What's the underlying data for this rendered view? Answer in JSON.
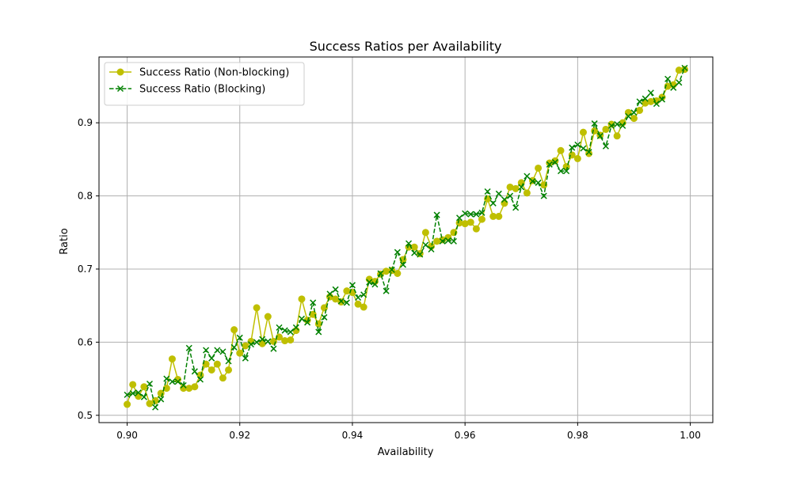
{
  "chart_data": {
    "type": "line",
    "title": "Success Ratios per Availability",
    "xlabel": "Availability",
    "ylabel": "Ratio",
    "xlim": [
      0.895,
      1.004
    ],
    "ylim": [
      0.49,
      0.99
    ],
    "x_ticks": [
      0.9,
      0.92,
      0.94,
      0.96,
      0.98,
      1.0
    ],
    "x_tick_labels": [
      "0.90",
      "0.92",
      "0.94",
      "0.96",
      "0.98",
      "1.00"
    ],
    "y_ticks": [
      0.5,
      0.6,
      0.7,
      0.8,
      0.9
    ],
    "y_tick_labels": [
      "0.5",
      "0.6",
      "0.7",
      "0.8",
      "0.9"
    ],
    "grid": true,
    "legend_position": "upper-left",
    "x": [
      0.9,
      0.901,
      0.902,
      0.903,
      0.904,
      0.905,
      0.906,
      0.907,
      0.908,
      0.909,
      0.91,
      0.911,
      0.912,
      0.913,
      0.914,
      0.915,
      0.916,
      0.917,
      0.918,
      0.919,
      0.92,
      0.921,
      0.922,
      0.923,
      0.924,
      0.925,
      0.926,
      0.927,
      0.928,
      0.929,
      0.93,
      0.931,
      0.932,
      0.933,
      0.934,
      0.935,
      0.936,
      0.937,
      0.938,
      0.939,
      0.94,
      0.941,
      0.942,
      0.943,
      0.944,
      0.945,
      0.946,
      0.947,
      0.948,
      0.949,
      0.95,
      0.951,
      0.952,
      0.953,
      0.954,
      0.955,
      0.956,
      0.957,
      0.958,
      0.959,
      0.96,
      0.961,
      0.962,
      0.963,
      0.964,
      0.965,
      0.966,
      0.967,
      0.968,
      0.969,
      0.97,
      0.971,
      0.972,
      0.973,
      0.974,
      0.975,
      0.976,
      0.977,
      0.978,
      0.979,
      0.98,
      0.981,
      0.982,
      0.983,
      0.984,
      0.985,
      0.986,
      0.987,
      0.988,
      0.989,
      0.99,
      0.991,
      0.992,
      0.993,
      0.994,
      0.995,
      0.996,
      0.997,
      0.998,
      0.999
    ],
    "series": [
      {
        "name": "Success Ratio (Non-blocking)",
        "color": "#bfbf00",
        "line_style": "solid",
        "marker": "circle",
        "values": [
          0.515,
          0.542,
          0.526,
          0.539,
          0.516,
          0.52,
          0.53,
          0.537,
          0.577,
          0.549,
          0.537,
          0.537,
          0.539,
          0.555,
          0.57,
          0.562,
          0.57,
          0.551,
          0.562,
          0.617,
          0.585,
          0.595,
          0.601,
          0.647,
          0.598,
          0.635,
          0.601,
          0.607,
          0.602,
          0.603,
          0.616,
          0.659,
          0.63,
          0.638,
          0.625,
          0.647,
          0.662,
          0.659,
          0.655,
          0.67,
          0.668,
          0.652,
          0.648,
          0.686,
          0.683,
          0.693,
          0.697,
          0.698,
          0.694,
          0.713,
          0.73,
          0.73,
          0.721,
          0.75,
          0.731,
          0.738,
          0.74,
          0.743,
          0.75,
          0.763,
          0.762,
          0.764,
          0.755,
          0.768,
          0.796,
          0.772,
          0.772,
          0.79,
          0.812,
          0.81,
          0.818,
          0.804,
          0.821,
          0.838,
          0.815,
          0.845,
          0.848,
          0.862,
          0.84,
          0.856,
          0.851,
          0.887,
          0.858,
          0.889,
          0.883,
          0.891,
          0.898,
          0.882,
          0.9,
          0.914,
          0.906,
          0.917,
          0.927,
          0.929,
          0.93,
          0.935,
          0.95,
          0.952,
          0.972,
          0.973
        ]
      },
      {
        "name": "Success Ratio (Blocking)",
        "color": "#008000",
        "line_style": "dashed",
        "marker": "x",
        "values": [
          0.528,
          0.53,
          0.531,
          0.525,
          0.543,
          0.511,
          0.522,
          0.55,
          0.546,
          0.546,
          0.541,
          0.592,
          0.56,
          0.549,
          0.589,
          0.578,
          0.589,
          0.587,
          0.574,
          0.593,
          0.606,
          0.578,
          0.597,
          0.6,
          0.604,
          0.601,
          0.591,
          0.62,
          0.616,
          0.614,
          0.62,
          0.632,
          0.627,
          0.654,
          0.614,
          0.634,
          0.666,
          0.672,
          0.656,
          0.654,
          0.678,
          0.661,
          0.665,
          0.682,
          0.679,
          0.694,
          0.67,
          0.699,
          0.723,
          0.706,
          0.735,
          0.722,
          0.72,
          0.733,
          0.727,
          0.774,
          0.738,
          0.739,
          0.738,
          0.77,
          0.776,
          0.775,
          0.775,
          0.777,
          0.806,
          0.79,
          0.803,
          0.795,
          0.8,
          0.784,
          0.812,
          0.827,
          0.82,
          0.818,
          0.8,
          0.843,
          0.846,
          0.834,
          0.834,
          0.866,
          0.87,
          0.865,
          0.86,
          0.899,
          0.882,
          0.868,
          0.896,
          0.898,
          0.896,
          0.909,
          0.914,
          0.929,
          0.933,
          0.941,
          0.926,
          0.932,
          0.96,
          0.948,
          0.955,
          0.975
        ]
      }
    ]
  }
}
